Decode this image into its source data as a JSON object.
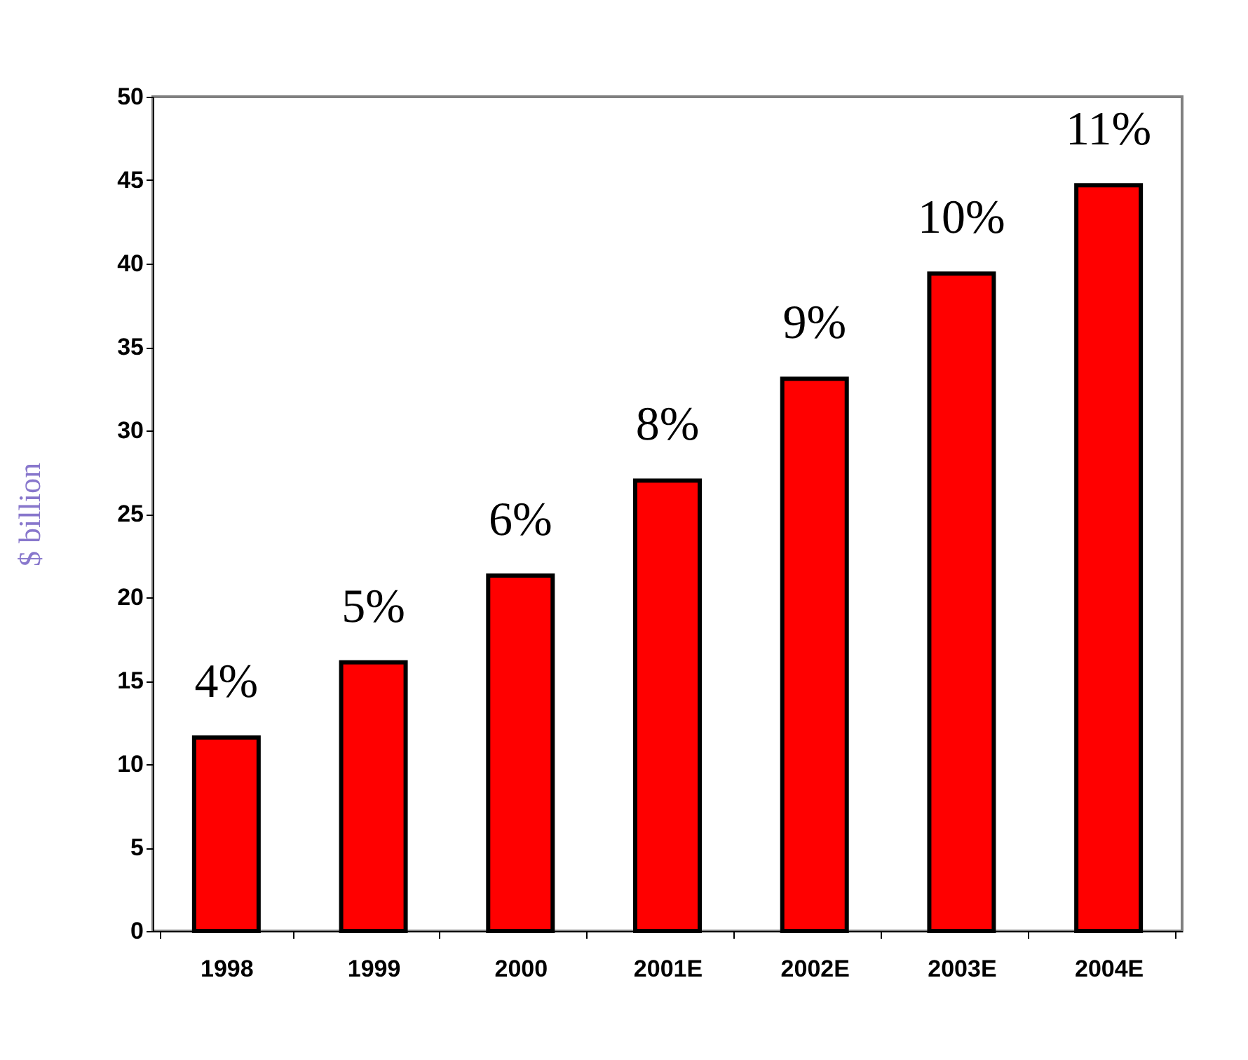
{
  "chart_data": {
    "type": "bar",
    "ylabel": "$ billion",
    "categories": [
      "1998",
      "1999",
      "2000",
      "2001E",
      "2002E",
      "2003E",
      "2004E"
    ],
    "values": [
      11.6,
      16.1,
      21.3,
      27.0,
      33.1,
      39.4,
      44.7
    ],
    "annotations": [
      {
        "text": "4%",
        "x": "1998",
        "y": 11.6
      },
      {
        "text": "5%",
        "x": "1999",
        "y": 16.1
      },
      {
        "text": "6%",
        "x": "2000",
        "y": 21.3
      },
      {
        "text": "8%",
        "x": "2001E",
        "y": 27.0
      },
      {
        "text": "9%",
        "x": "2002E",
        "y": 33.1
      },
      {
        "text": "10%",
        "x": "2003E",
        "y": 39.4
      },
      {
        "text": "11%",
        "x": "2004E",
        "y": 44.7
      }
    ],
    "color": "#ff0000",
    "ylim": [
      0,
      50
    ],
    "yticks": [
      0,
      5,
      10,
      15,
      20,
      25,
      30,
      35,
      40,
      45,
      50
    ],
    "grid": false
  }
}
